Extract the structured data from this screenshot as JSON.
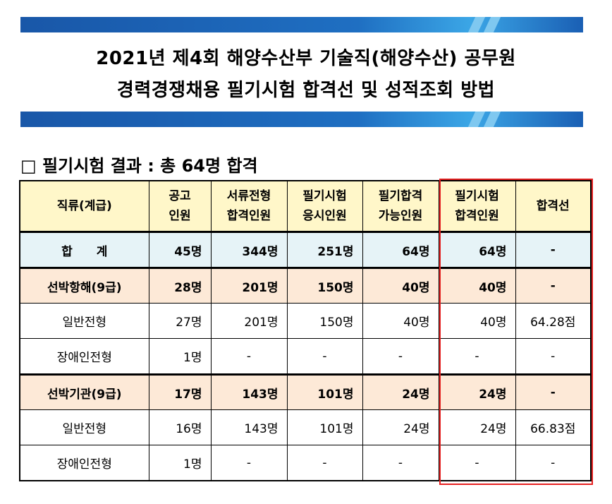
{
  "title": {
    "line1": "2021년 제4회 해양수산부 기술직(해양수산) 공무원",
    "line2": "경력경쟁채용 필기시험 합격선 및 성적조회 방법"
  },
  "section_heading": "□ 필기시험 결과 : 총 64명 합격",
  "table": {
    "headers": [
      {
        "l1": "직류(계급)",
        "l2": ""
      },
      {
        "l1": "공고",
        "l2": "인원"
      },
      {
        "l1": "서류전형",
        "l2": "합격인원"
      },
      {
        "l1": "필기시험",
        "l2": "응시인원"
      },
      {
        "l1": "필기합격",
        "l2": "가능인원"
      },
      {
        "l1": "필기시험",
        "l2": "합격인원"
      },
      {
        "l1": "합격선",
        "l2": ""
      }
    ],
    "rows": [
      {
        "type": "total",
        "cells": [
          "합　　계",
          "45명",
          "344명",
          "251명",
          "64명",
          "64명",
          "-"
        ]
      },
      {
        "type": "group",
        "cells": [
          "선박항해(9급)",
          "28명",
          "201명",
          "150명",
          "40명",
          "40명",
          "-"
        ]
      },
      {
        "type": "sub",
        "cells": [
          "일반전형",
          "27명",
          "201명",
          "150명",
          "40명",
          "40명",
          "64.28점"
        ]
      },
      {
        "type": "sub",
        "cells": [
          "장애인전형",
          "1명",
          "-",
          "-",
          "-",
          "-",
          "-"
        ]
      },
      {
        "type": "group",
        "cells": [
          "선박기관(9급)",
          "17명",
          "143명",
          "101명",
          "24명",
          "24명",
          "-"
        ]
      },
      {
        "type": "sub",
        "cells": [
          "일반전형",
          "16명",
          "143명",
          "101명",
          "24명",
          "24명",
          "66.83점"
        ]
      },
      {
        "type": "sub",
        "cells": [
          "장애인전형",
          "1명",
          "-",
          "-",
          "-",
          "-",
          "-"
        ]
      }
    ]
  },
  "colors": {
    "banner": "#1f6fc2",
    "header_bg": "#fff7c9",
    "total_bg": "#e6f3f7",
    "group_bg": "#fde9d7",
    "highlight_border": "#e52020"
  }
}
